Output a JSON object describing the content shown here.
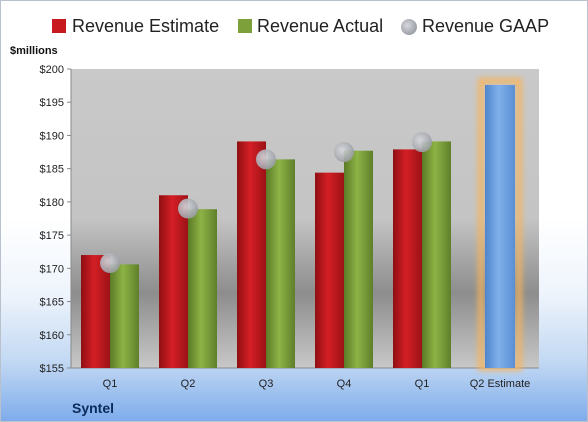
{
  "chart_data": {
    "type": "bar",
    "title": "",
    "unit_label": "$millions",
    "brand": "Syntel",
    "categories": [
      "Q1",
      "Q2",
      "Q3",
      "Q4",
      "Q1",
      "Q2 Estimate"
    ],
    "ylim": [
      155,
      200
    ],
    "yticks": [
      155,
      160,
      165,
      170,
      175,
      180,
      185,
      190,
      195,
      200
    ],
    "ytick_labels": [
      "$155",
      "$160",
      "$165",
      "$170",
      "$175",
      "$180",
      "$185",
      "$190",
      "$195",
      "$200"
    ],
    "legend_position": "top",
    "series": [
      {
        "name": "Revenue Estimate",
        "kind": "bar",
        "color": "#c8191f",
        "values": [
          172.0,
          181.0,
          189.1,
          184.4,
          187.9,
          null
        ]
      },
      {
        "name": "Revenue Actual",
        "kind": "bar",
        "color": "#7da03a",
        "values": [
          170.6,
          178.9,
          186.4,
          187.7,
          189.1,
          null
        ]
      },
      {
        "name": "Revenue GAAP",
        "kind": "marker",
        "color": "#a9acb4",
        "values": [
          170.8,
          179.0,
          186.4,
          187.5,
          189.0,
          null
        ]
      }
    ],
    "forecast": {
      "category_index": 5,
      "value": 197.6,
      "color": "#6a9cdb",
      "glow_color": "#f7b45a"
    },
    "grid": false
  }
}
